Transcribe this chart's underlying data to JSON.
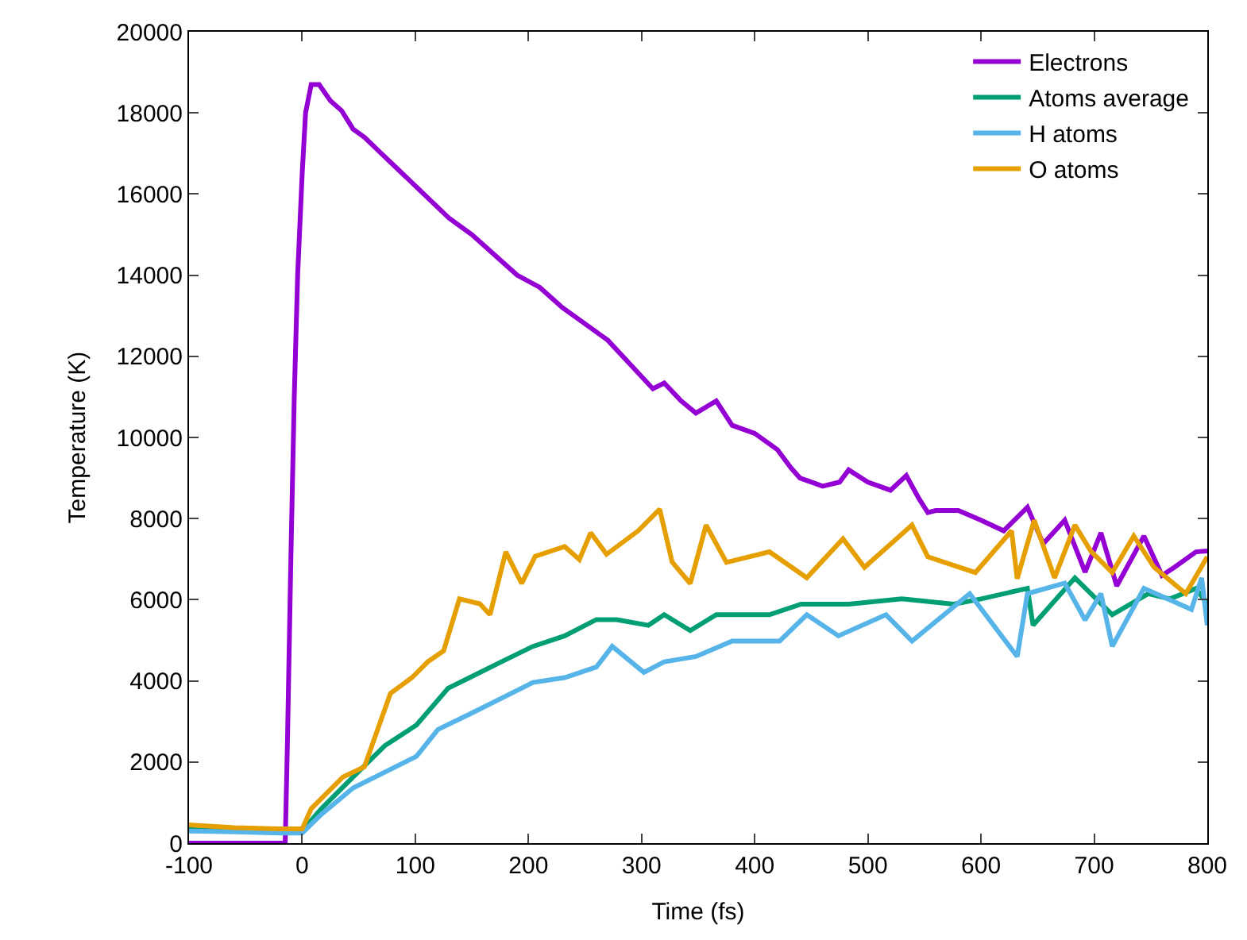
{
  "chart_data": {
    "type": "line",
    "xlabel": "Time (fs)",
    "ylabel": "Temperature (K)",
    "xlim": [
      -100,
      800
    ],
    "xticks": [
      -100,
      0,
      100,
      200,
      300,
      400,
      500,
      600,
      700,
      800
    ],
    "ylim": [
      0,
      20000
    ],
    "yticks": [
      0,
      2000,
      4000,
      6000,
      8000,
      10000,
      12000,
      14000,
      16000,
      18000,
      20000
    ],
    "legend": "top right",
    "line_style": "solid",
    "marker": "none",
    "series": [
      {
        "name": "Electrons",
        "color": "#9400d3",
        "x": [
          -100,
          -60,
          -16,
          -15,
          -13,
          -10,
          -7,
          -4,
          0,
          3,
          8,
          15,
          25,
          35,
          45,
          55,
          70,
          85,
          100,
          115,
          130,
          150,
          170,
          190,
          210,
          230,
          250,
          270,
          290,
          310,
          320,
          335,
          348,
          366,
          380,
          400,
          420,
          432,
          440,
          460,
          475,
          483,
          500,
          520,
          534,
          545,
          553,
          560,
          580,
          600,
          620,
          641,
          655,
          674,
          692,
          706,
          720,
          744,
          760,
          771,
          790,
          800
        ],
        "values": [
          0,
          0,
          0,
          0,
          2500,
          7000,
          11000,
          14000,
          16500,
          18000,
          18700,
          18700,
          18300,
          18050,
          17600,
          17400,
          17000,
          16600,
          16200,
          15800,
          15400,
          15000,
          14500,
          14000,
          13700,
          13200,
          12800,
          12400,
          11800,
          11200,
          11340,
          10900,
          10600,
          10900,
          10300,
          10100,
          9700,
          9250,
          9000,
          8800,
          8900,
          9200,
          8900,
          8700,
          9060,
          8500,
          8150,
          8200,
          8200,
          7960,
          7700,
          8280,
          7380,
          7960,
          6680,
          7650,
          6340,
          7570,
          6600,
          6800,
          7180,
          7200
        ]
      },
      {
        "name": "Atoms average",
        "color": "#009e73",
        "x": [
          -100,
          -60,
          -20,
          0,
          17,
          45,
          73,
          101,
          129,
          148,
          176,
          204,
          232,
          260,
          278,
          306,
          320,
          343,
          366,
          413,
          441,
          483,
          530,
          576,
          600,
          641,
          646,
          683,
          716,
          748,
          767,
          790,
          800
        ],
        "values": [
          350,
          320,
          300,
          300,
          850,
          1630,
          2400,
          2910,
          3820,
          4080,
          4470,
          4850,
          5110,
          5510,
          5510,
          5370,
          5630,
          5240,
          5630,
          5630,
          5890,
          5890,
          6020,
          5890,
          6020,
          6280,
          5370,
          6540,
          5630,
          6150,
          6020,
          6280,
          5890
        ]
      },
      {
        "name": "H atoms",
        "color": "#56b4e9",
        "x": [
          -100,
          -60,
          -20,
          0,
          17,
          45,
          73,
          101,
          120,
          148,
          176,
          204,
          232,
          260,
          274,
          302,
          320,
          348,
          380,
          422,
          446,
          474,
          516,
          539,
          590,
          632,
          641,
          674,
          692,
          706,
          716,
          744,
          786,
          795,
          800
        ],
        "values": [
          300,
          280,
          250,
          250,
          710,
          1360,
          1750,
          2140,
          2800,
          3180,
          3570,
          3960,
          4080,
          4340,
          4850,
          4210,
          4470,
          4600,
          4980,
          4980,
          5630,
          5110,
          5630,
          4980,
          6150,
          4600,
          6150,
          6410,
          5500,
          6150,
          4850,
          6280,
          5760,
          6540,
          5370
        ]
      },
      {
        "name": "O atoms",
        "color": "#e69f00",
        "x": [
          -100,
          -60,
          -20,
          0,
          8,
          36,
          55,
          78,
          97,
          111,
          125,
          139,
          157,
          166,
          180,
          194,
          206,
          232,
          245,
          255,
          269,
          297,
          316,
          327,
          343,
          357,
          375,
          413,
          446,
          478,
          497,
          539,
          553,
          595,
          627,
          632,
          647,
          665,
          683,
          697,
          716,
          735,
          753,
          781,
          800
        ],
        "values": [
          450,
          380,
          350,
          350,
          850,
          1630,
          1880,
          3690,
          4080,
          4470,
          4740,
          6020,
          5900,
          5630,
          7180,
          6400,
          7070,
          7310,
          6990,
          7650,
          7120,
          7700,
          8230,
          6930,
          6400,
          7840,
          6920,
          7180,
          6540,
          7500,
          6800,
          7840,
          7060,
          6670,
          7700,
          6520,
          7960,
          6540,
          7840,
          7200,
          6670,
          7570,
          6800,
          6150,
          7060
        ]
      }
    ]
  }
}
